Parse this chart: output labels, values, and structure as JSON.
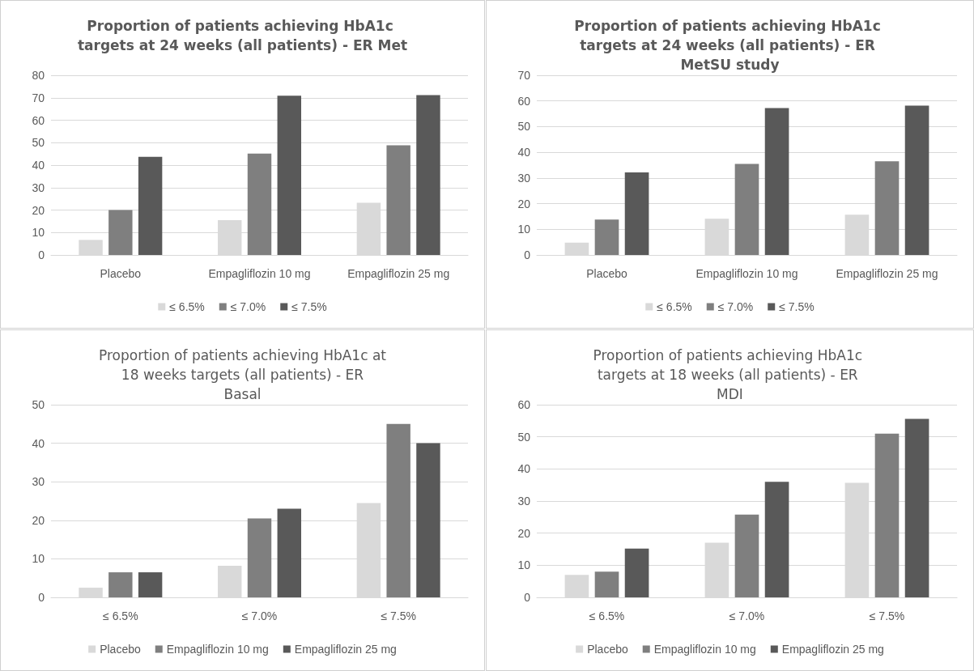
{
  "chart_data": [
    {
      "type": "bar",
      "title": "Proportion of patients achieving HbA1c targets at 24 weeks (all patients) - ER Met",
      "categories": [
        "Placebo",
        "Empagliflozin 10 mg",
        "Empagliflozin 25 mg"
      ],
      "series": [
        {
          "name": "≤ 6.5%",
          "color": "#d9d9d9",
          "values": [
            6.7,
            15.5,
            23.2
          ]
        },
        {
          "name": "≤ 7.0%",
          "color": "#7f7f7f",
          "values": [
            20,
            45.1,
            48.8
          ]
        },
        {
          "name": "≤ 7.5%",
          "color": "#595959",
          "values": [
            43.7,
            70.9,
            71.2
          ]
        }
      ],
      "ylim": [
        0,
        80
      ],
      "yticks": [
        0,
        10,
        20,
        30,
        40,
        50,
        60,
        70,
        80
      ],
      "grid": "y",
      "legend": "bottom"
    },
    {
      "type": "bar",
      "title": "Proportion of patients achieving HbA1c targets at 24 weeks (all patients) - ER MetSU study",
      "categories": [
        "Placebo",
        "Empagliflozin 10 mg",
        "Empagliflozin 25 mg"
      ],
      "series": [
        {
          "name": "≤ 6.5%",
          "color": "#d9d9d9",
          "values": [
            4.8,
            14.1,
            15.7
          ]
        },
        {
          "name": "≤ 7.0%",
          "color": "#7f7f7f",
          "values": [
            13.8,
            35.5,
            36.5
          ]
        },
        {
          "name": "≤ 7.5%",
          "color": "#595959",
          "values": [
            32.2,
            57.2,
            58.2
          ]
        }
      ],
      "ylim": [
        0,
        70
      ],
      "yticks": [
        0,
        10,
        20,
        30,
        40,
        50,
        60,
        70
      ],
      "grid": "y",
      "legend": "bottom"
    },
    {
      "type": "bar",
      "title": "Proportion of patients achieving HbA1c at 18 weeks targets (all patients) - ER Basal",
      "categories": [
        "≤ 6.5%",
        "≤ 7.0%",
        "≤ 7.5%"
      ],
      "series": [
        {
          "name": "Placebo",
          "color": "#d9d9d9",
          "values": [
            2.5,
            8.2,
            24.5
          ]
        },
        {
          "name": "Empagliflozin 10 mg",
          "color": "#7f7f7f",
          "values": [
            6.5,
            20.5,
            45
          ]
        },
        {
          "name": "Empagliflozin 25 mg",
          "color": "#595959",
          "values": [
            6.5,
            23,
            40
          ]
        }
      ],
      "ylim": [
        0,
        50
      ],
      "yticks": [
        0,
        10,
        20,
        30,
        40,
        50
      ],
      "grid": "y",
      "legend": "bottom"
    },
    {
      "type": "bar",
      "title": "Proportion of patients achieving HbA1c targets at 18 weeks (all patients) - ER MDI",
      "categories": [
        "≤ 6.5%",
        "≤ 7.0%",
        "≤ 7.5%"
      ],
      "series": [
        {
          "name": "Placebo",
          "color": "#d9d9d9",
          "values": [
            7,
            17,
            35.7
          ]
        },
        {
          "name": "Empagliflozin 10 mg",
          "color": "#7f7f7f",
          "values": [
            8,
            25.8,
            51
          ]
        },
        {
          "name": "Empagliflozin 25 mg",
          "color": "#595959",
          "values": [
            15.2,
            36,
            55.6
          ]
        }
      ],
      "ylim": [
        0,
        60
      ],
      "yticks": [
        0,
        10,
        20,
        30,
        40,
        50,
        60
      ],
      "grid": "y",
      "legend": "bottom"
    }
  ]
}
